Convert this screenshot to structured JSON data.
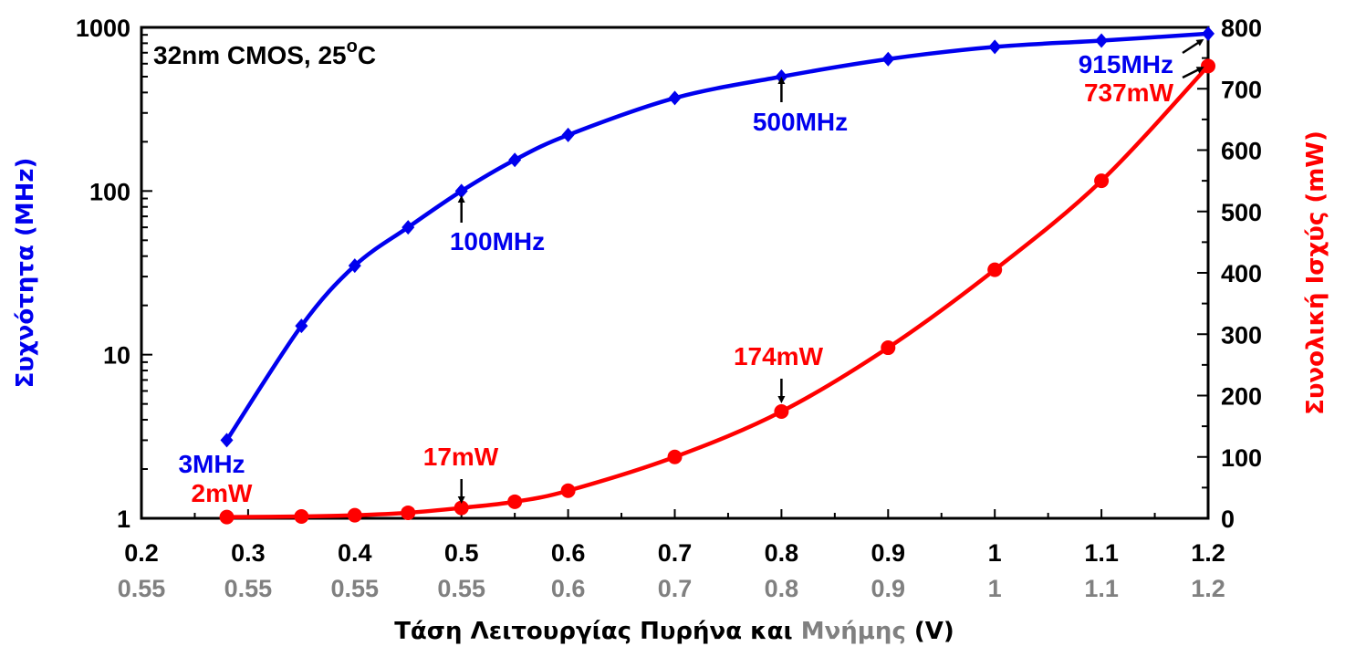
{
  "chart_data": {
    "type": "line",
    "title": "",
    "condition": {
      "prefix": "32nm CMOS, 25",
      "sup": "o",
      "suffix": "C"
    },
    "x": [
      0.28,
      0.35,
      0.4,
      0.45,
      0.5,
      0.55,
      0.6,
      0.7,
      0.8,
      0.9,
      1.0,
      1.1,
      1.2
    ],
    "x_ticks": [
      "0.2",
      "0.3",
      "0.4",
      "0.5",
      "0.6",
      "0.7",
      "0.8",
      "0.9",
      "1",
      "1.1",
      "1.2"
    ],
    "x_ticks_secondary": [
      "0.55",
      "0.55",
      "0.55",
      "0.55",
      "0.6",
      "0.7",
      "0.8",
      "0.9",
      "1",
      "1.1",
      "1.2"
    ],
    "xlim": [
      0.2,
      1.2
    ],
    "xlabel": {
      "main": "Τάση Λειτουργίας Πυρήνα και ",
      "gray": "Μνήμης",
      "tail": " (V)"
    },
    "ylabel_left": "Συχνότητα (MHz)",
    "ylabel_right": "Συνολική Ισχύς (mW)",
    "y_left_scale": "log",
    "y_left_lim": [
      1,
      1000
    ],
    "y_left_ticks": [
      "1",
      "10",
      "100",
      "1000"
    ],
    "y_right_lim": [
      0,
      800
    ],
    "y_right_ticks": [
      "0",
      "100",
      "200",
      "300",
      "400",
      "500",
      "600",
      "700",
      "800"
    ],
    "series": [
      {
        "name": "Συχνότητα (MHz)",
        "axis": "left",
        "color": "#0000ee",
        "marker": "diamond",
        "values": [
          3,
          15,
          35,
          60,
          100,
          155,
          220,
          370,
          500,
          640,
          760,
          830,
          915
        ]
      },
      {
        "name": "Συνολική Ισχύς (mW)",
        "axis": "right",
        "color": "#ff0000",
        "marker": "circle",
        "values": [
          2,
          3,
          5,
          9,
          17,
          27,
          45,
          100,
          174,
          278,
          405,
          550,
          737
        ]
      }
    ],
    "annotations": [
      {
        "text": "3MHz",
        "series": "freq"
      },
      {
        "text": "2mW",
        "series": "power"
      },
      {
        "text": "100MHz",
        "series": "freq"
      },
      {
        "text": "17mW",
        "series": "power"
      },
      {
        "text": "500MHz",
        "series": "freq"
      },
      {
        "text": "174mW",
        "series": "power"
      },
      {
        "text": "915MHz",
        "series": "freq"
      },
      {
        "text": "737mW",
        "series": "power"
      }
    ],
    "colors": {
      "freq": "#0000ee",
      "power": "#ff0000",
      "secondary": "#808080",
      "axis": "#000000"
    }
  }
}
